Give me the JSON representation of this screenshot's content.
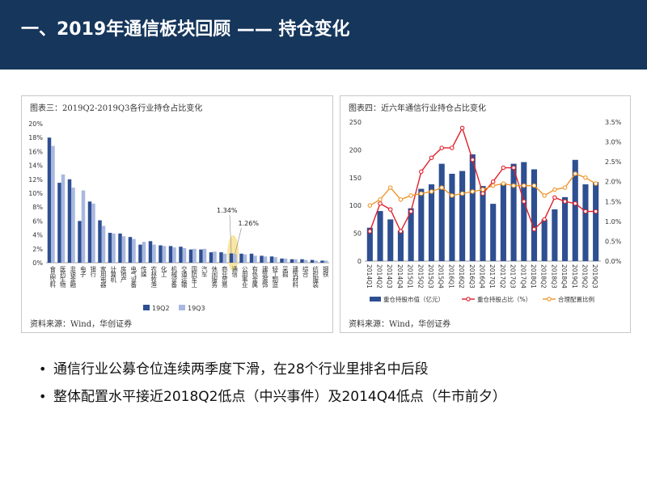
{
  "header": {
    "title": "一、2019年通信板块回顾 —— 持仓变化"
  },
  "chart_data": [
    {
      "type": "bar",
      "title": "图表三：2019Q2-2019Q3各行业持仓占比变化",
      "source": "资料来源：Wind，华创证券",
      "categories": [
        "食品饮料",
        "医药生物",
        "非银金融",
        "电子",
        "银行",
        "家用电器",
        "计算机",
        "房地产",
        "电气设备",
        "传媒",
        "农林牧渔",
        "化工",
        "机械设备",
        "交通运输",
        "国防军工",
        "汽车",
        "休闲服务",
        "商业贸易",
        "通信",
        "公用事业",
        "有色金属",
        "建筑装饰",
        "轻工制造",
        "采掘",
        "建筑材料",
        "综合",
        "纺织服装",
        "钢铁"
      ],
      "category_labels": [
        "食品饮料",
        "医药生物",
        "非银金融",
        "电子",
        "银行",
        "家用电器",
        "计算机",
        "房地产",
        "电气设备",
        "传媒",
        "农林牧渔",
        "化工",
        "机械设备",
        "交通运输",
        "国防军工",
        "汽车",
        "休闲服务",
        "商业贸易",
        "通信",
        "公用事业",
        "有色金属",
        "建筑装饰",
        "轻工制造",
        "采掘",
        "建筑材料",
        "综合",
        "纺织服装",
        "钢铁"
      ],
      "series": [
        {
          "name": "19Q2",
          "color": "#2e4f91",
          "values": [
            18.0,
            11.5,
            12.0,
            6.0,
            8.8,
            6.1,
            4.3,
            4.2,
            3.7,
            2.6,
            3.1,
            2.5,
            2.4,
            2.3,
            1.9,
            1.9,
            1.5,
            1.5,
            1.34,
            1.3,
            1.3,
            1.0,
            0.9,
            0.6,
            0.5,
            0.5,
            0.4,
            0.3
          ]
        },
        {
          "name": "19Q3",
          "color": "#a9b8e0",
          "values": [
            16.8,
            12.7,
            10.8,
            10.4,
            8.5,
            5.3,
            4.2,
            3.8,
            3.4,
            3.0,
            2.6,
            2.4,
            2.2,
            2.1,
            2.0,
            2.0,
            1.6,
            1.3,
            1.26,
            1.2,
            1.0,
            0.9,
            0.8,
            0.6,
            0.5,
            0.4,
            0.3,
            0.3
          ]
        }
      ],
      "annotations": [
        {
          "text": "1.34%",
          "category": "通信",
          "series": "19Q2"
        },
        {
          "text": "1.26%",
          "category": "通信",
          "series": "19Q3"
        }
      ],
      "yticks": [
        "0%",
        "2%",
        "4%",
        "6%",
        "8%",
        "10%",
        "12%",
        "14%",
        "16%",
        "18%",
        "20%"
      ],
      "ylim": [
        0,
        20
      ],
      "legend": "bottom"
    },
    {
      "type": "bar",
      "title": "图表四：近六年通信行业持仓占比变化",
      "source": "资料来源：Wind，华创证券",
      "categories": [
        "2014Q1",
        "2014Q2",
        "2014Q3",
        "2014Q4",
        "2015Q1",
        "2015Q2",
        "2015Q3",
        "2015Q4",
        "2016Q1",
        "2016Q2",
        "2016Q3",
        "2016Q4",
        "2017Q1",
        "2017Q2",
        "2017Q3",
        "2017Q4",
        "2018Q1",
        "2018Q2",
        "2018Q3",
        "2018Q4",
        "2019Q1",
        "2019Q2",
        "2019Q3"
      ],
      "x_labels": [
        "2014Q1",
        "2014Q2",
        "2014Q3",
        "2014Q4",
        "2015Q1",
        "2015Q2",
        "2015Q3",
        "2015Q4",
        "2016Q1",
        "2016Q2",
        "2016Q3",
        "2016Q4",
        "2017Q1",
        "2017Q2",
        "2017Q3",
        "2017Q4",
        "2018Q1",
        "2018Q2",
        "2018Q3",
        "2018Q4",
        "2019Q1",
        "2019Q2",
        "2019Q3"
      ],
      "series": [
        {
          "name": "重仓持股市值（亿元）",
          "kind": "bar",
          "axis": "left",
          "color": "#2e4f91",
          "values": [
            60,
            90,
            75,
            55,
            95,
            130,
            138,
            175,
            157,
            162,
            192,
            135,
            103,
            140,
            175,
            178,
            165,
            75,
            93,
            115,
            182,
            138,
            142
          ]
        },
        {
          "name": "重仓持股占比（%）",
          "kind": "line",
          "axis": "right",
          "color": "#e0202a",
          "values": [
            0.75,
            1.45,
            1.3,
            0.75,
            1.25,
            2.25,
            2.6,
            2.85,
            2.85,
            3.35,
            2.55,
            1.7,
            2.0,
            2.35,
            2.35,
            1.5,
            0.8,
            1.05,
            1.6,
            1.5,
            1.45,
            1.25,
            1.25
          ]
        },
        {
          "name": "合理配置比例",
          "kind": "line",
          "axis": "right",
          "color": "#f0962a",
          "values": [
            1.4,
            1.55,
            1.85,
            1.55,
            1.65,
            1.7,
            1.75,
            1.85,
            1.65,
            1.7,
            1.75,
            1.8,
            1.9,
            1.95,
            1.9,
            1.9,
            1.9,
            1.65,
            1.8,
            1.85,
            2.2,
            2.1,
            1.95
          ]
        }
      ],
      "y_left": {
        "ylim": [
          0,
          250
        ],
        "ticks": [
          "0",
          "50",
          "100",
          "150",
          "200",
          "250"
        ]
      },
      "y_right": {
        "ylim": [
          0,
          3.5
        ],
        "ticks": [
          "0.0%",
          "0.5%",
          "1.0%",
          "1.5%",
          "2.0%",
          "2.5%",
          "3.0%",
          "3.5%"
        ]
      },
      "legend": "bottom"
    }
  ],
  "bullets": [
    "通信行业公募仓位连续两季度下滑，在28个行业里排名中后段",
    "整体配置水平接近2018Q2低点（中兴事件）及2014Q4低点（牛市前夕）"
  ]
}
